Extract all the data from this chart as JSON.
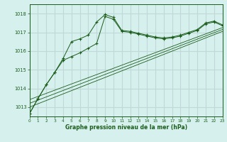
{
  "bg_color": "#d6f0ee",
  "grid_color": "#c0d8d8",
  "line_color": "#1a5c1a",
  "marker_color": "#1a5c1a",
  "xlabel": "Graphe pression niveau de la mer (hPa)",
  "xlabel_color": "#1a5c1a",
  "tick_color": "#1a5c1a",
  "xlim": [
    0,
    23
  ],
  "ylim": [
    1012.5,
    1018.5
  ],
  "yticks": [
    1013,
    1014,
    1015,
    1016,
    1017,
    1018
  ],
  "xticks": [
    0,
    1,
    2,
    3,
    4,
    5,
    6,
    7,
    8,
    9,
    10,
    11,
    12,
    13,
    14,
    15,
    16,
    17,
    18,
    19,
    20,
    21,
    22,
    23
  ],
  "series1": [
    [
      0,
      1012.65
    ],
    [
      1,
      1013.45
    ],
    [
      2,
      1014.2
    ],
    [
      3,
      1014.85
    ],
    [
      4,
      1015.6
    ],
    [
      5,
      1016.5
    ],
    [
      6,
      1016.65
    ],
    [
      7,
      1016.85
    ],
    [
      8,
      1017.55
    ],
    [
      9,
      1017.95
    ],
    [
      10,
      1017.8
    ],
    [
      11,
      1017.1
    ],
    [
      12,
      1017.05
    ],
    [
      13,
      1016.95
    ],
    [
      14,
      1016.85
    ],
    [
      15,
      1016.75
    ],
    [
      16,
      1016.7
    ],
    [
      17,
      1016.75
    ],
    [
      18,
      1016.85
    ],
    [
      19,
      1017.0
    ],
    [
      20,
      1017.15
    ],
    [
      21,
      1017.5
    ],
    [
      22,
      1017.6
    ],
    [
      23,
      1017.4
    ]
  ],
  "series2": [
    [
      0,
      1012.65
    ],
    [
      1,
      1013.45
    ],
    [
      2,
      1014.2
    ],
    [
      3,
      1014.85
    ],
    [
      4,
      1015.5
    ],
    [
      5,
      1015.7
    ],
    [
      6,
      1015.9
    ],
    [
      7,
      1016.15
    ],
    [
      8,
      1016.4
    ],
    [
      9,
      1017.85
    ],
    [
      10,
      1017.7
    ],
    [
      11,
      1017.05
    ],
    [
      12,
      1017.0
    ],
    [
      13,
      1016.9
    ],
    [
      14,
      1016.8
    ],
    [
      15,
      1016.7
    ],
    [
      16,
      1016.65
    ],
    [
      17,
      1016.7
    ],
    [
      18,
      1016.8
    ],
    [
      19,
      1016.95
    ],
    [
      20,
      1017.1
    ],
    [
      21,
      1017.45
    ],
    [
      22,
      1017.55
    ],
    [
      23,
      1017.35
    ]
  ],
  "line3": [
    [
      0,
      1013.0
    ],
    [
      23,
      1017.05
    ]
  ],
  "line4": [
    [
      0,
      1013.2
    ],
    [
      23,
      1017.15
    ]
  ],
  "line5": [
    [
      0,
      1013.4
    ],
    [
      23,
      1017.25
    ]
  ]
}
